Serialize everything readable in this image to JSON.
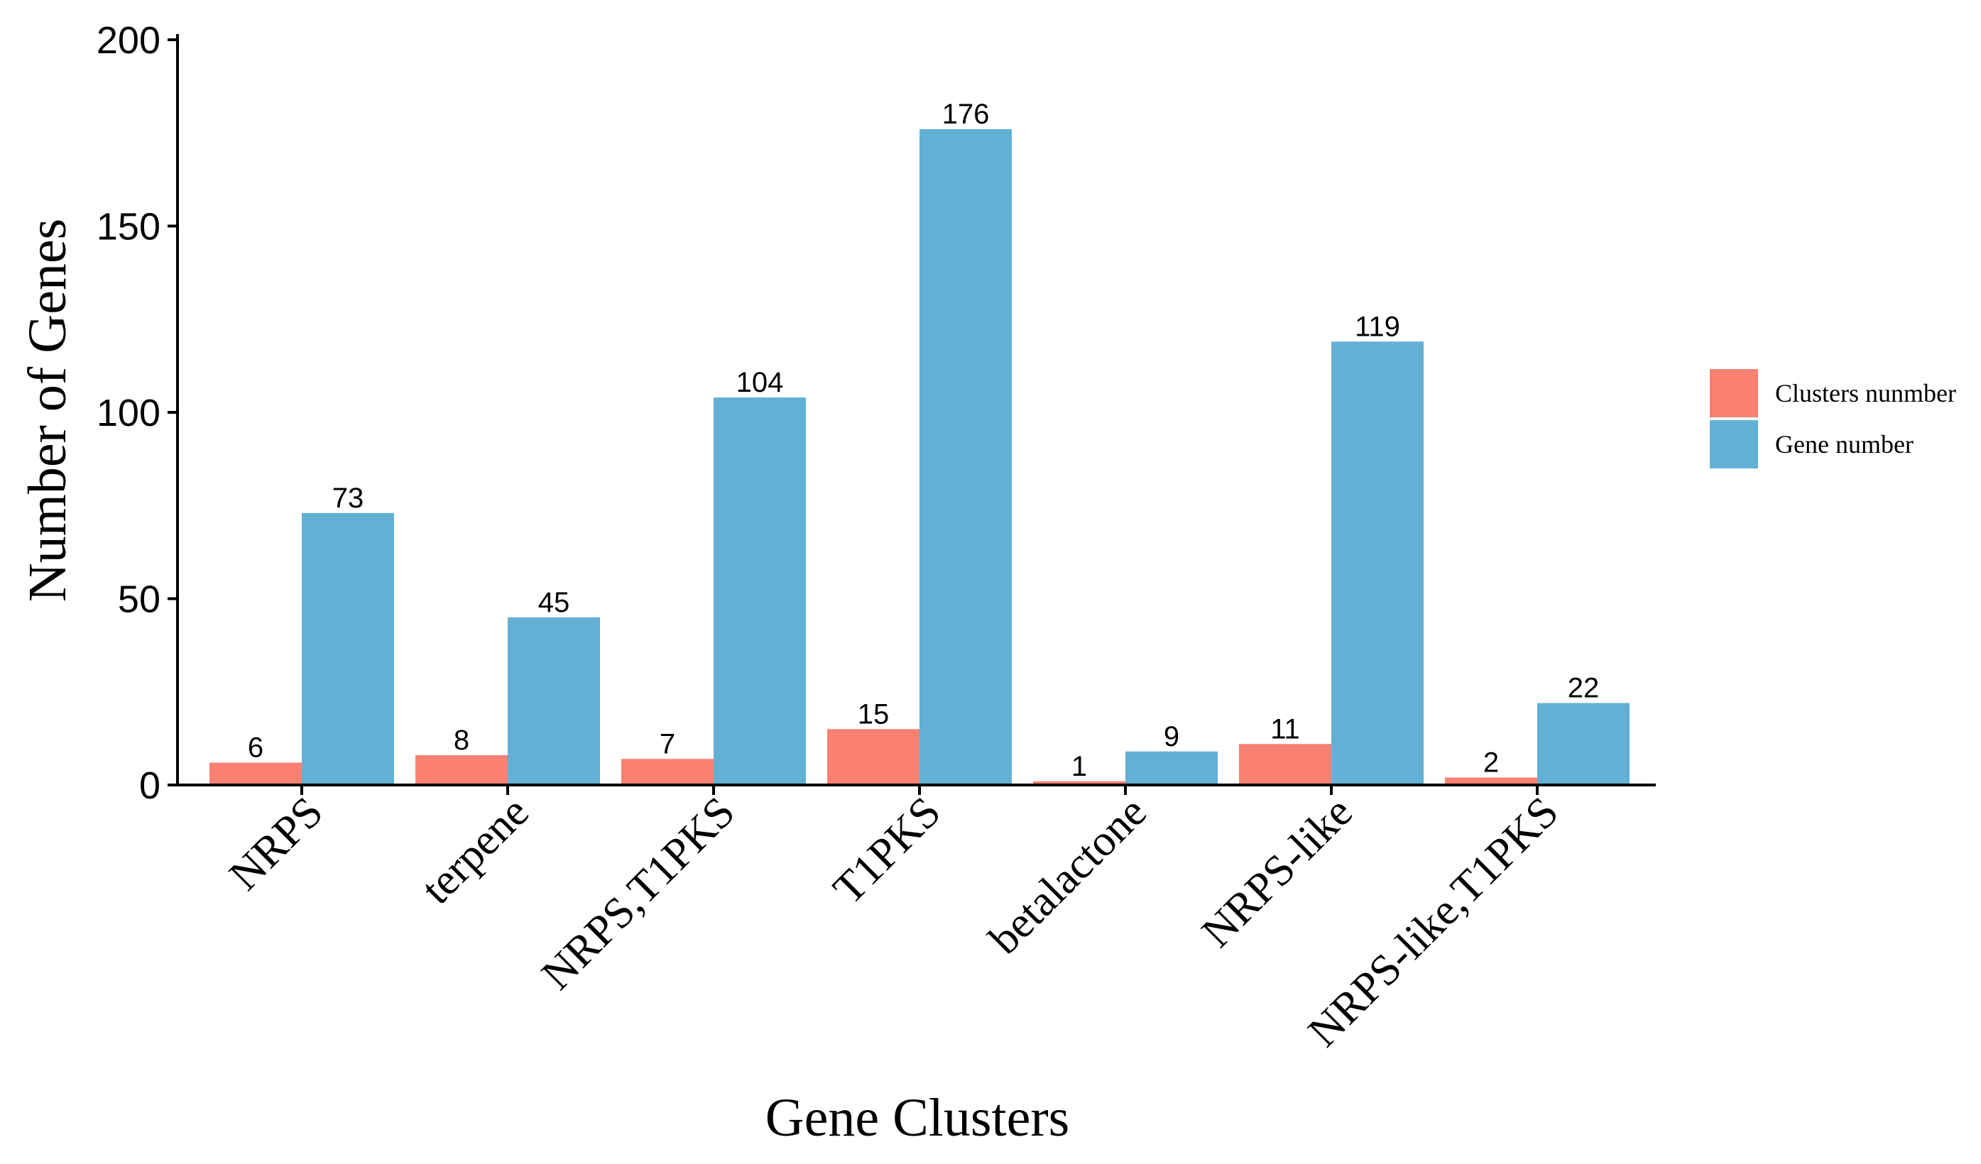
{
  "chart_data": {
    "type": "bar",
    "title": "",
    "xlabel": "Gene Clusters",
    "ylabel": "Number of Genes",
    "ylim": [
      0,
      200
    ],
    "yticks": [
      "0",
      "50",
      "100",
      "150",
      "200"
    ],
    "categories": [
      "NRPS",
      "terpene",
      "NRPS,T1PKS",
      "T1PKS",
      "betalactone",
      "NRPS-like",
      "NRPS-like,T1PKS"
    ],
    "series": [
      {
        "name": "Clusters nunmber",
        "color": "#FA8072",
        "values": [
          6,
          8,
          7,
          15,
          1,
          11,
          2
        ]
      },
      {
        "name": "Gene number",
        "color": "#63B0D5",
        "values": [
          73,
          45,
          104,
          176,
          9,
          119,
          22
        ]
      }
    ],
    "legend_position": "right",
    "grid": false
  }
}
